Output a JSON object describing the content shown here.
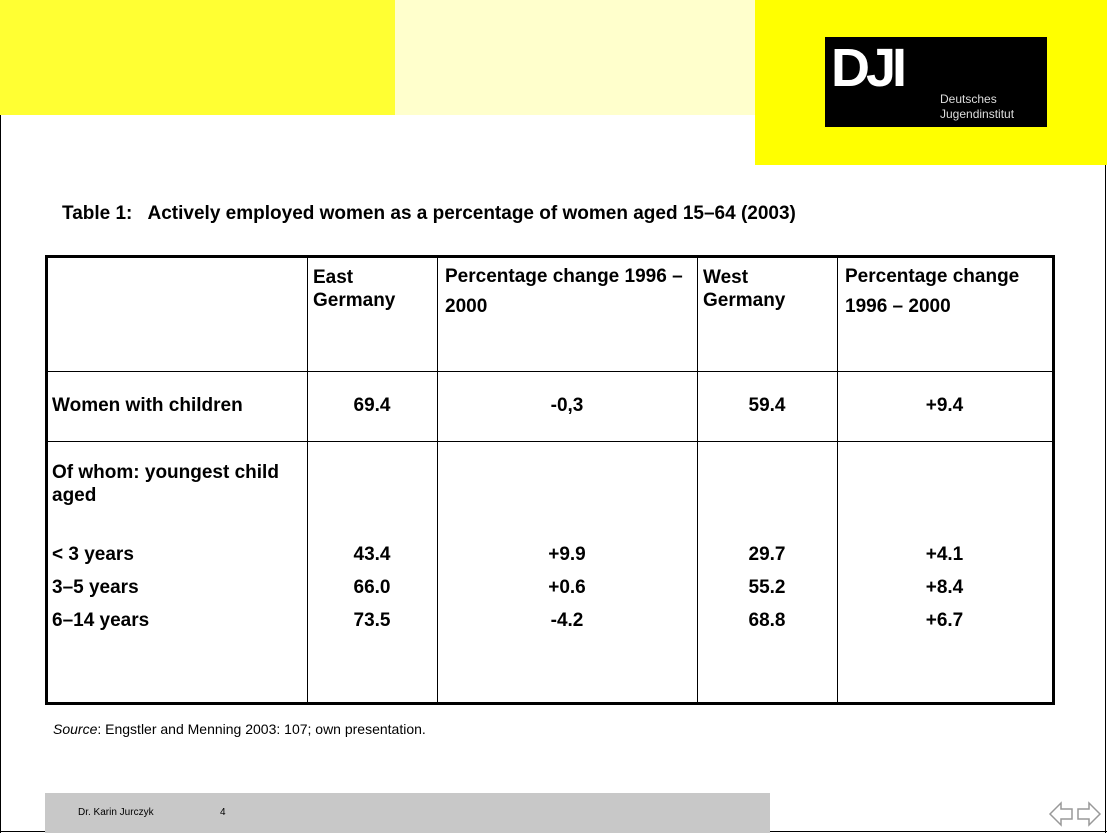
{
  "logo": {
    "mark": "DJI",
    "line1": "Deutsches",
    "line2": "Jugendinstitut"
  },
  "title": "Table 1:   Actively employed women as a percentage of women aged 15–64 (2003)",
  "table": {
    "columns": [
      "East Germany",
      "Percentage change 1996 – 2000",
      "West Germany",
      "Percentage change 1996 – 2000"
    ],
    "rows": [
      {
        "label": "Women with children",
        "values": [
          "69.4",
          "-0,3",
          "59.4",
          "+9.4"
        ]
      }
    ],
    "group": {
      "label": "Of whom: youngest child aged",
      "rows": [
        {
          "label": "< 3 years",
          "values": [
            "43.4",
            "+9.9",
            "29.7",
            "+4.1"
          ]
        },
        {
          "label": "3–5 years",
          "values": [
            "66.0",
            "+0.6",
            "55.2",
            "+8.4"
          ]
        },
        {
          "label": "6–14 years",
          "values": [
            "73.5",
            "-4.2",
            "68.8",
            "+6.7"
          ]
        }
      ]
    }
  },
  "source": {
    "label": "Source",
    "text": ": Engstler and Menning 2003: 107; own presentation."
  },
  "footer": {
    "author": "Dr. Karin Jurczyk",
    "page": "4"
  }
}
